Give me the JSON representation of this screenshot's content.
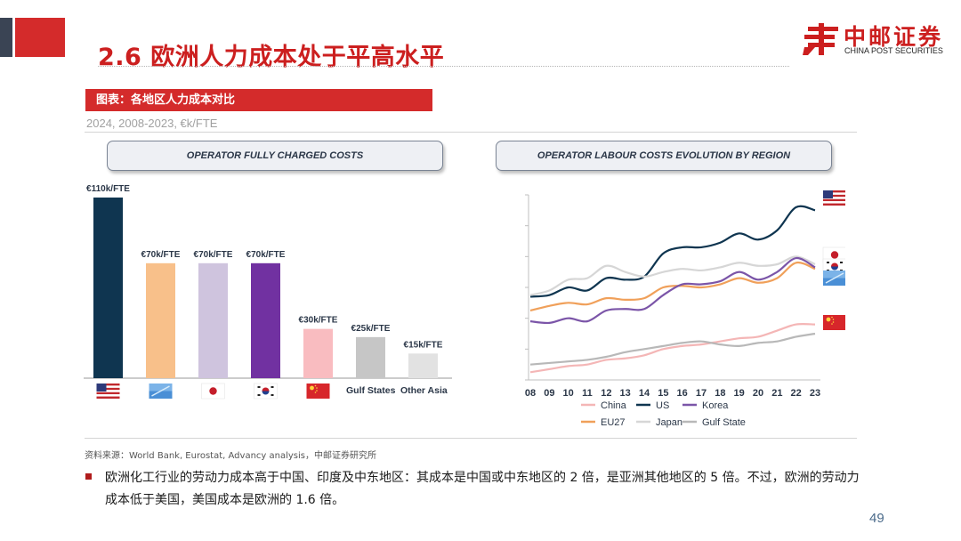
{
  "header": {
    "title": "2.6 欧洲人力成本处于平高水平",
    "logo_cn": "中邮证券",
    "logo_en": "CHINA POST SECURITIES"
  },
  "figure": {
    "label": "图表：各地区人力成本对比",
    "subtitle": "2024, 2008-2023, €k/FTE"
  },
  "chart_data": [
    {
      "type": "bar",
      "title": "OPERATOR FULLY CHARGED COSTS",
      "categories": [
        "US",
        "EU27",
        "Japan",
        "Korea",
        "China",
        "Gulf States",
        "Other Asia"
      ],
      "values": [
        110,
        70,
        70,
        70,
        30,
        25,
        15
      ],
      "value_labels": [
        "€110k/FTE",
        "€70k/FTE",
        "€70k/FTE",
        "€70k/FTE",
        "€30k/FTE",
        "€25k/FTE",
        "€15k/FTE"
      ],
      "colors": [
        "#0f3550",
        "#f8c08a",
        "#cfc4de",
        "#7131a1",
        "#f9bcc0",
        "#c6c6c6",
        "#e2e2e2"
      ],
      "x_labels_text": [
        "Gulf States",
        "Other Asia"
      ],
      "ylim": [
        0,
        110
      ]
    },
    {
      "type": "line",
      "title": "OPERATOR LABOUR COSTS EVOLUTION BY REGION",
      "x": [
        "08",
        "09",
        "10",
        "11",
        "12",
        "13",
        "14",
        "15",
        "16",
        "17",
        "18",
        "19",
        "20",
        "21",
        "22",
        "23"
      ],
      "ylim": [
        0,
        120
      ],
      "series": [
        {
          "name": "US",
          "color": "#0f3550",
          "values": [
            54,
            55,
            60,
            58,
            66,
            65,
            67,
            82,
            86,
            86,
            89,
            95,
            91,
            97,
            112,
            110
          ]
        },
        {
          "name": "Japan",
          "color": "#d6d6d6",
          "values": [
            55,
            58,
            65,
            66,
            74,
            70,
            67,
            70,
            72,
            71,
            73,
            76,
            74,
            75,
            80,
            75
          ]
        },
        {
          "name": "EU27",
          "color": "#f0a05a",
          "values": [
            45,
            48,
            50,
            49,
            53,
            52,
            53,
            60,
            61,
            60,
            62,
            66,
            63,
            66,
            76,
            72
          ]
        },
        {
          "name": "Korea",
          "color": "#7b55a8",
          "values": [
            38,
            37,
            40,
            38,
            45,
            46,
            46,
            55,
            62,
            62,
            64,
            70,
            65,
            70,
            79,
            73
          ]
        },
        {
          "name": "China",
          "color": "#f4b6b6",
          "values": [
            5,
            7,
            9,
            10,
            13,
            14,
            16,
            20,
            22,
            23,
            25,
            27,
            28,
            32,
            36,
            36
          ]
        },
        {
          "name": "Gulf State",
          "color": "#b8b8b8",
          "values": [
            10,
            11,
            12,
            13,
            15,
            18,
            20,
            22,
            24,
            25,
            23,
            22,
            24,
            25,
            28,
            30
          ]
        }
      ],
      "legend": [
        {
          "name": "China",
          "color": "#f4b6b6"
        },
        {
          "name": "US",
          "color": "#0f3550"
        },
        {
          "name": "Korea",
          "color": "#7b55a8"
        },
        {
          "name": "EU27",
          "color": "#f0a05a"
        },
        {
          "name": "Japan",
          "color": "#d6d6d6"
        },
        {
          "name": "Gulf State",
          "color": "#b8b8b8"
        }
      ]
    }
  ],
  "footer": {
    "source": "资料来源：World Bank, Eurostat, Advancy analysis，中邮证券研究所",
    "bullet": "欧洲化工行业的劳动力成本高于中国、印度及中东地区：其成本是中国或中东地区的 2 倍，是亚洲其他地区的 5 倍。不过，欧洲的劳动力成本低于美国，美国成本是欧洲的 1.6 倍。",
    "page_number": "49"
  }
}
